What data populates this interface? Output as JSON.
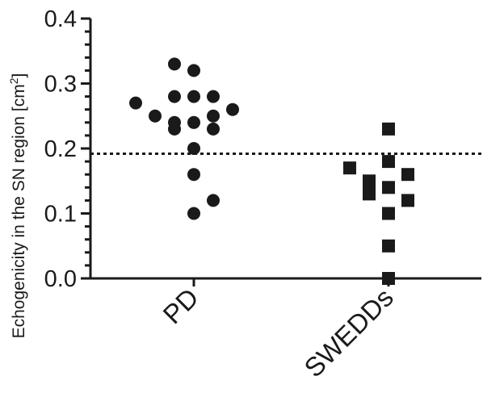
{
  "chart_data": {
    "type": "scatter",
    "ylabel": "Echogenicity in the SN region [cm",
    "ylabel_sup": "2",
    "ylabel_close": "]",
    "ylim": [
      0.0,
      0.4
    ],
    "yticks": [
      "0.0",
      "0.1",
      "0.2",
      "0.3",
      "0.4"
    ],
    "categories": [
      "PD",
      "SWEDDs"
    ],
    "threshold": 0.192,
    "threshold_style": "dotted",
    "grid": false,
    "series": [
      {
        "category": "PD",
        "marker": "circle",
        "color": "#1a1a1a",
        "points": [
          {
            "offset": -3,
            "y": 0.27
          },
          {
            "offset": -2,
            "y": 0.25
          },
          {
            "offset": -1,
            "y": 0.33
          },
          {
            "offset": -1,
            "y": 0.28
          },
          {
            "offset": -1,
            "y": 0.24
          },
          {
            "offset": -1,
            "y": 0.23
          },
          {
            "offset": 0,
            "y": 0.32
          },
          {
            "offset": 0,
            "y": 0.28
          },
          {
            "offset": 0,
            "y": 0.24
          },
          {
            "offset": 0,
            "y": 0.2
          },
          {
            "offset": 0,
            "y": 0.16
          },
          {
            "offset": 0,
            "y": 0.1
          },
          {
            "offset": 1,
            "y": 0.28
          },
          {
            "offset": 1,
            "y": 0.25
          },
          {
            "offset": 1,
            "y": 0.23
          },
          {
            "offset": 1,
            "y": 0.12
          },
          {
            "offset": 2,
            "y": 0.26
          }
        ]
      },
      {
        "category": "SWEDDs",
        "marker": "square",
        "color": "#1a1a1a",
        "points": [
          {
            "offset": -2,
            "y": 0.17
          },
          {
            "offset": -1,
            "y": 0.15
          },
          {
            "offset": -1,
            "y": 0.14
          },
          {
            "offset": -1,
            "y": 0.13
          },
          {
            "offset": 0,
            "y": 0.23
          },
          {
            "offset": 0,
            "y": 0.18
          },
          {
            "offset": 0,
            "y": 0.14
          },
          {
            "offset": 0,
            "y": 0.1
          },
          {
            "offset": 0,
            "y": 0.05
          },
          {
            "offset": 0,
            "y": 0.0
          },
          {
            "offset": 1,
            "y": 0.16
          },
          {
            "offset": 1,
            "y": 0.12
          }
        ]
      }
    ]
  }
}
